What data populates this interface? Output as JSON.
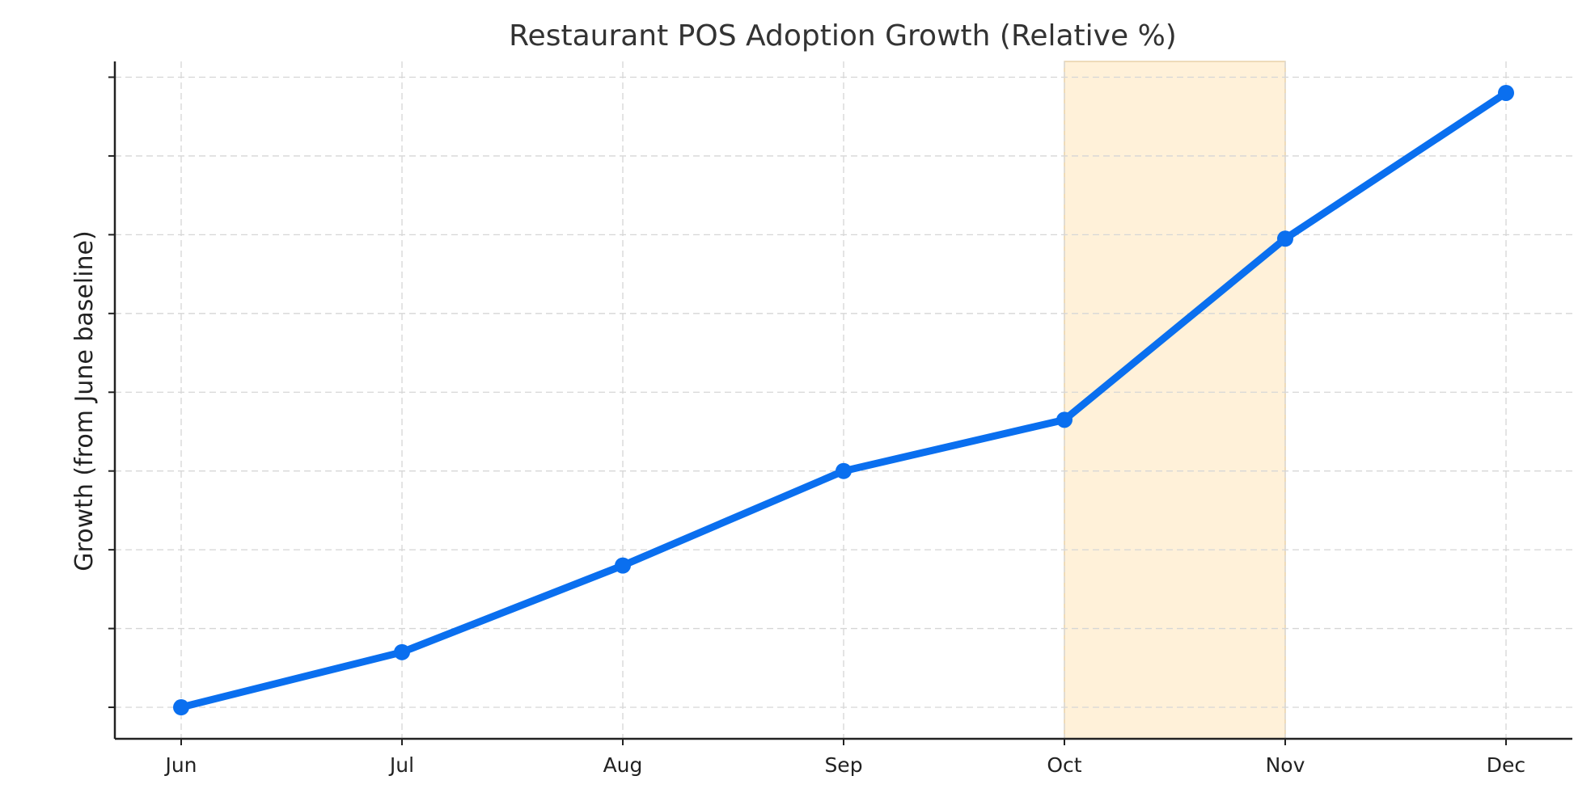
{
  "colors": {
    "series": "#0a6fef",
    "highlight_fill": "#fff1d9",
    "highlight_edge": "#e6cfa6"
  },
  "chart_data": {
    "type": "line",
    "title": "Restaurant POS Adoption Growth (Relative %)",
    "xlabel": "",
    "ylabel": "Growth (from June baseline)",
    "categories": [
      "Jun",
      "Jul",
      "Aug",
      "Sep",
      "Oct",
      "Nov",
      "Dec"
    ],
    "series": [
      {
        "values": [
          0,
          7,
          18,
          30,
          36.5,
          59.5,
          78
        ]
      }
    ],
    "ylim": [
      -4,
      82
    ],
    "y_tick_values": [
      0,
      10,
      20,
      30,
      40,
      50,
      60,
      70,
      80
    ],
    "y_tick_labels_shown": false,
    "grid": true,
    "markers": true,
    "highlight_range": [
      "Oct",
      "Nov"
    ]
  }
}
